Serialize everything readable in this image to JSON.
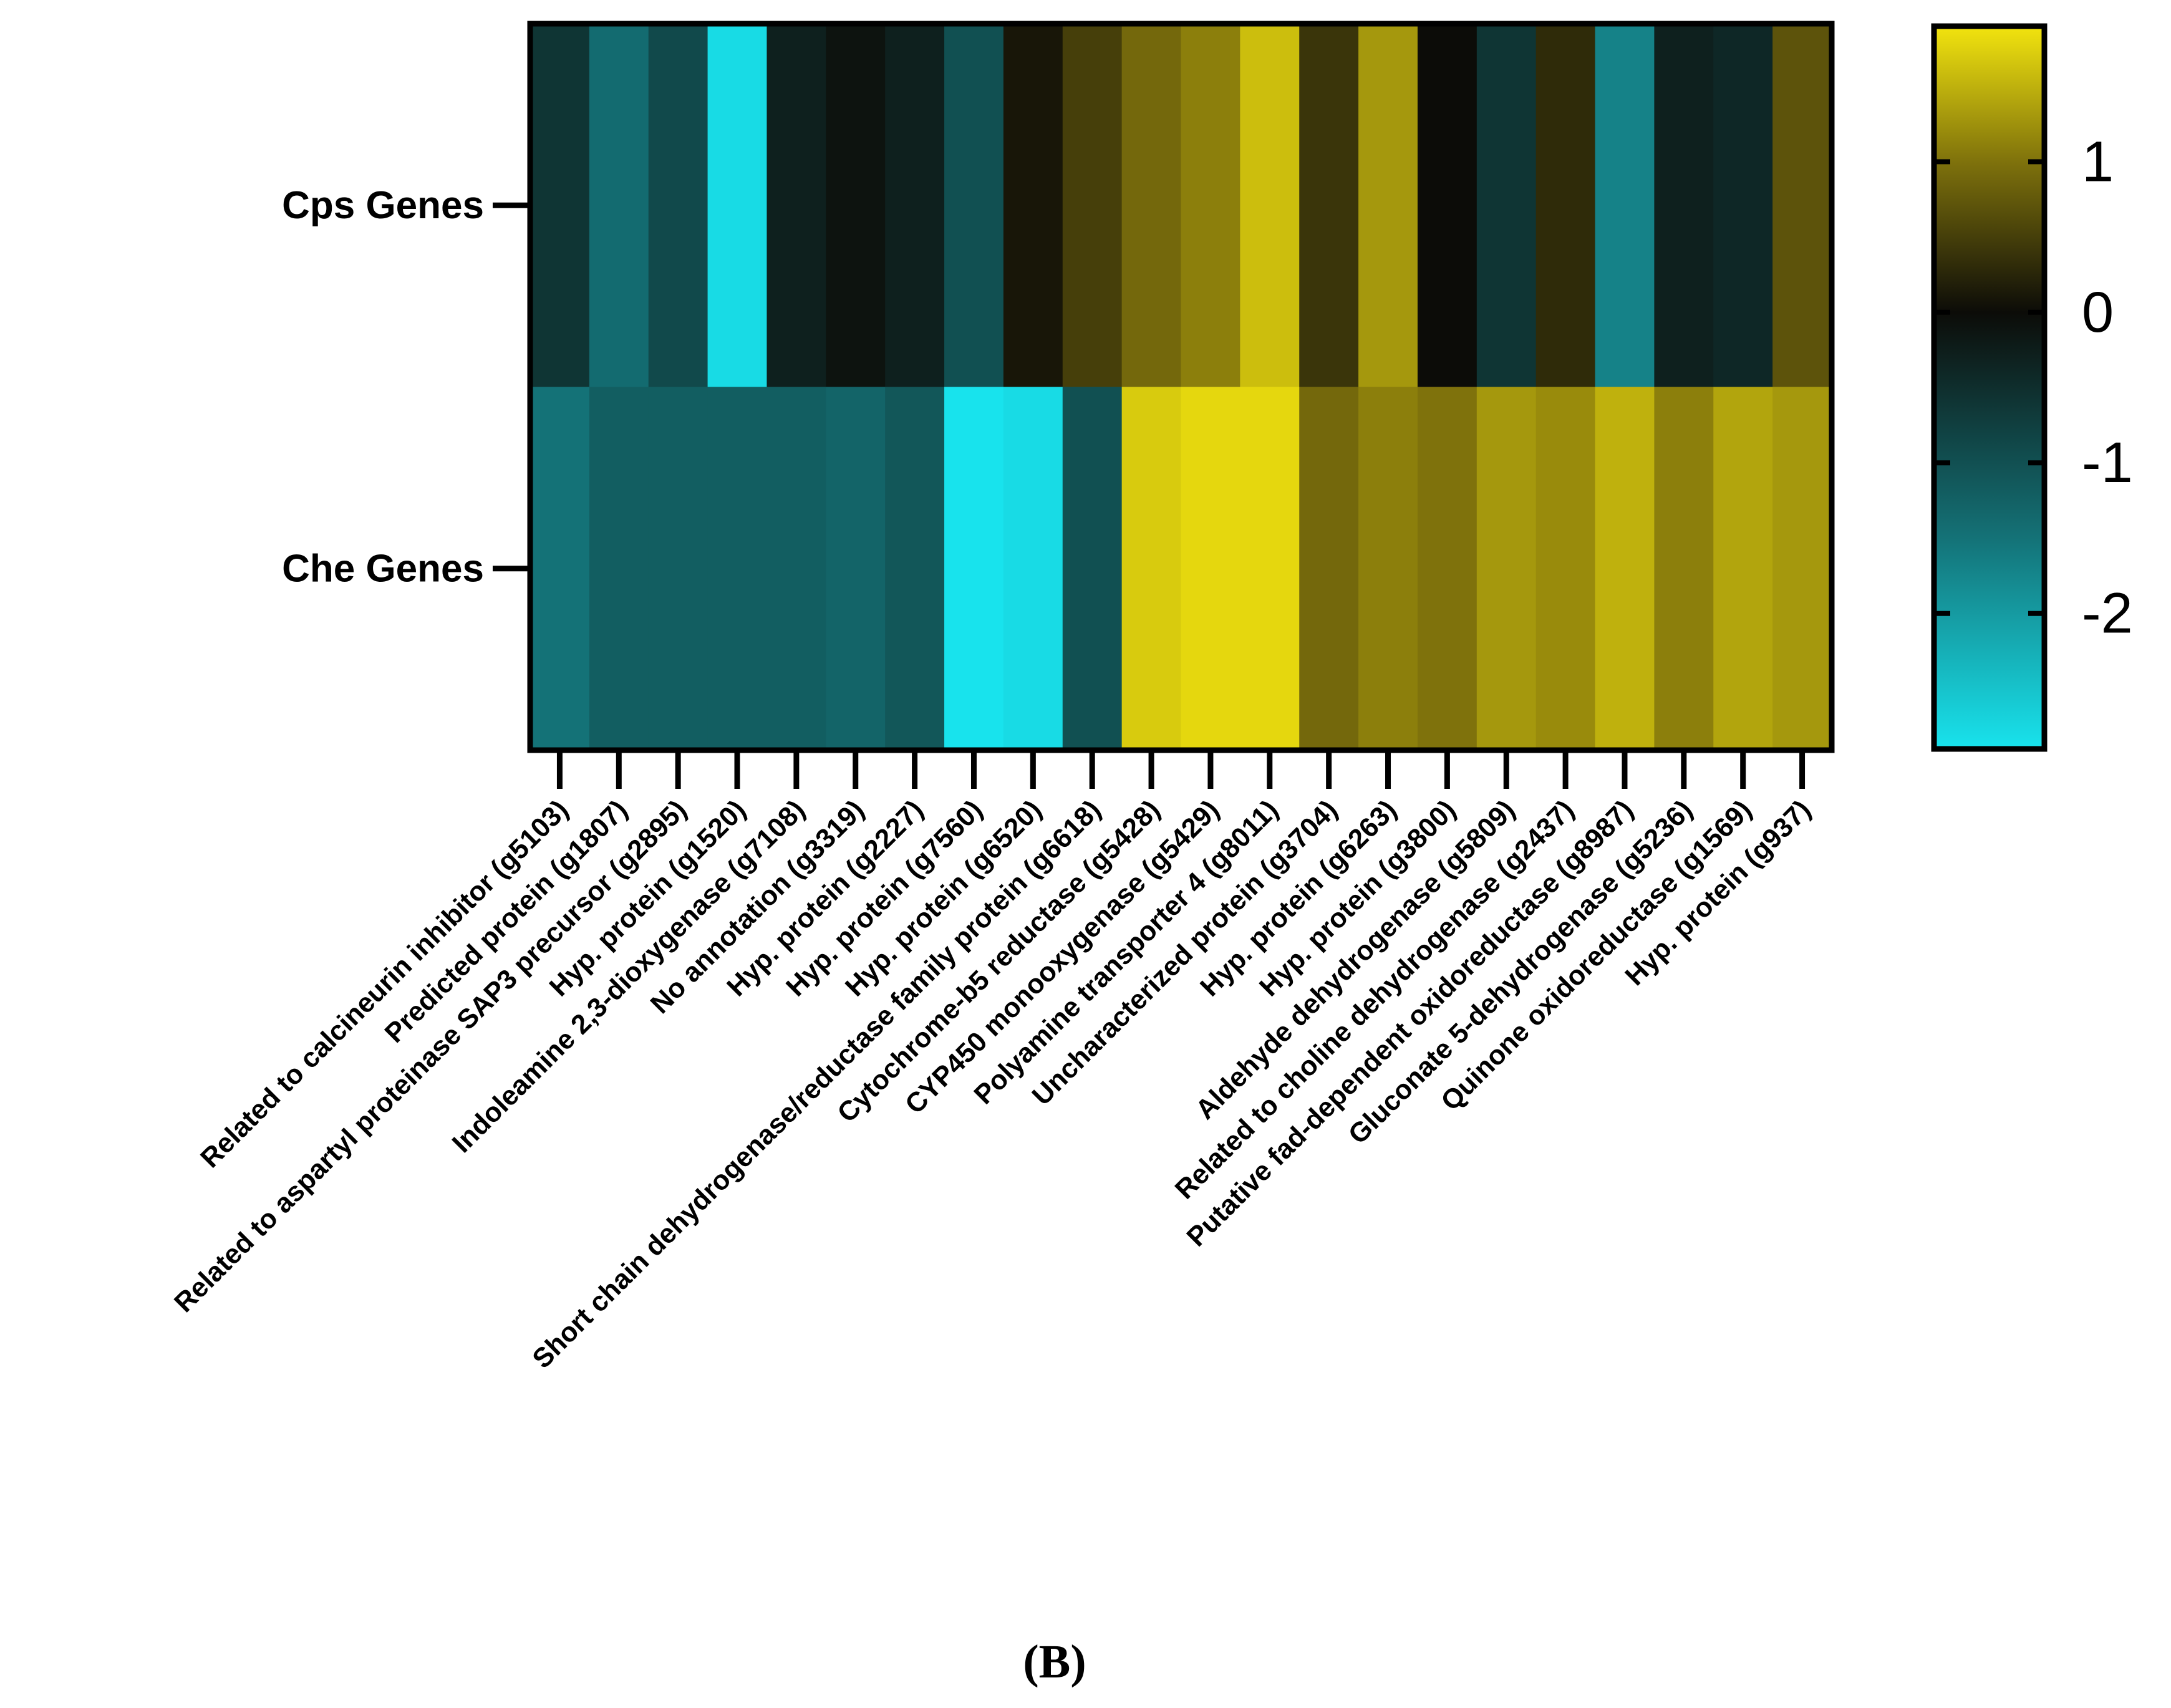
{
  "panel_label_open": "(",
  "panel_label": "B",
  "panel_label_close": ")",
  "chart_data": {
    "type": "heatmap",
    "title": "",
    "xlabel": "",
    "ylabel": "",
    "rows": [
      "Cps Genes",
      "Che Genes"
    ],
    "columns": [
      "Related to calcineurin inhibitor (g5103)",
      "Predicted protein (g1807)",
      "Related to aspartyl proteinase SAP3 precursor (g2895)",
      "Hyp. protein (g1520)",
      "Indoleamine 2,3-dioxygenase (g7108)",
      "No annotation (g3319)",
      "Hyp. protein (g2227)",
      "Hyp. protein (g7560)",
      "Hyp. protein (g6520)",
      "Short chain dehydrogenase/reductase family protein (g6618)",
      "Cytochrome-b5 reductase (g5428)",
      "CYP450 monooxygenase (g5429)",
      "Polyamine transporter 4 (g8011)",
      "Uncharacterized protein (g3704)",
      "Hyp. protein (g6263)",
      "Hyp. protein (g3800)",
      "Aldehyde dehydrogenase (g5809)",
      "Related to choline dehydrogenase (g2437)",
      "Putative fad-dependent oxidoreductase (g8987)",
      "Gluconate 5-dehydrogenase (g5236)",
      "Quinone oxidoreductase (g1569)",
      "Hyp. protein (g937)"
    ],
    "values": [
      [
        -0.6,
        -1.4,
        -0.9,
        -2.8,
        -0.3,
        -0.1,
        -0.3,
        -1.0,
        0.1,
        0.5,
        0.9,
        1.1,
        1.6,
        0.4,
        1.3,
        0.0,
        -0.6,
        0.3,
        -1.7,
        -0.3,
        -0.4,
        0.7
      ],
      [
        -1.5,
        -1.2,
        -1.2,
        -1.2,
        -1.2,
        -1.3,
        -1.1,
        -2.9,
        -2.8,
        -1.0,
        1.7,
        1.8,
        1.8,
        0.9,
        1.1,
        1.0,
        1.3,
        1.2,
        1.5,
        1.1,
        1.4,
        1.3
      ]
    ],
    "colorscale": {
      "min": -2.9,
      "max": 1.9,
      "stops": [
        {
          "value": -2.9,
          "color": "#18e3ed"
        },
        {
          "value": -1.5,
          "color": "#147277"
        },
        {
          "value": 0,
          "color": "#0c0c08"
        },
        {
          "value": 1,
          "color": "#7f720c"
        },
        {
          "value": 1.9,
          "color": "#f2e40e"
        }
      ]
    },
    "colorbar_ticks": [
      1,
      0,
      -1,
      -2
    ],
    "colorbar_tick_labels": [
      "1",
      "0",
      "-1",
      "-2"
    ],
    "legend_placement": "right",
    "grid": false
  }
}
